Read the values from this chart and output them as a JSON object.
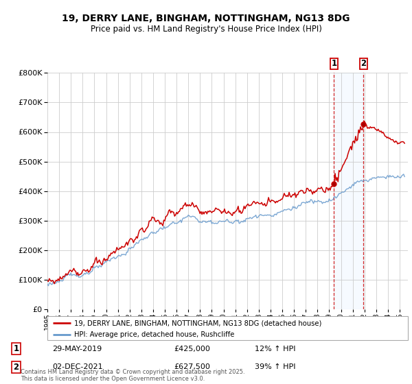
{
  "title": "19, DERRY LANE, BINGHAM, NOTTINGHAM, NG13 8DG",
  "subtitle": "Price paid vs. HM Land Registry's House Price Index (HPI)",
  "property_label": "19, DERRY LANE, BINGHAM, NOTTINGHAM, NG13 8DG (detached house)",
  "hpi_label": "HPI: Average price, detached house, Rushcliffe",
  "annotation1_date": "29-MAY-2019",
  "annotation1_price": "£425,000",
  "annotation1_hpi": "12% ↑ HPI",
  "annotation2_date": "02-DEC-2021",
  "annotation2_price": "£627,500",
  "annotation2_hpi": "39% ↑ HPI",
  "footer": "Contains HM Land Registry data © Crown copyright and database right 2025.\nThis data is licensed under the Open Government Licence v3.0.",
  "sale1_year": 2019.41,
  "sale1_value": 425000,
  "sale2_year": 2021.92,
  "sale2_value": 627500,
  "property_color": "#cc0000",
  "hpi_color": "#6699cc",
  "shade_color": "#ddeeff",
  "sale_marker_color": "#cc0000",
  "vline_color": "#cc0000",
  "ylim": [
    0,
    800000
  ],
  "yticks": [
    0,
    100000,
    200000,
    300000,
    400000,
    500000,
    600000,
    700000,
    800000
  ],
  "year_start": 1995,
  "year_end": 2025
}
